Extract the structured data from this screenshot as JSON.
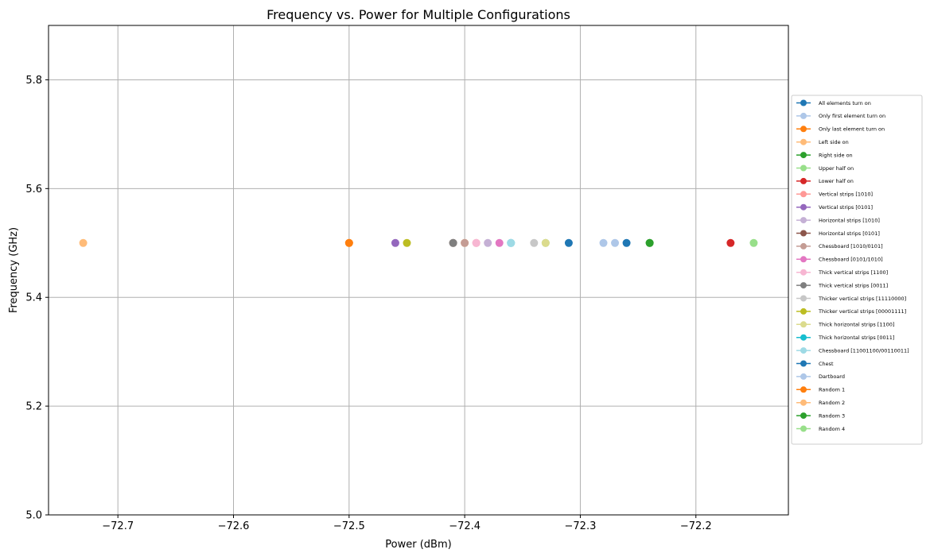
{
  "chart_data": {
    "type": "scatter",
    "title": "Frequency vs. Power for Multiple Configurations",
    "xlabel": "Power (dBm)",
    "ylabel": "Frequency (GHz)",
    "xlim": [
      -72.76,
      -72.12
    ],
    "ylim": [
      5.0,
      5.9
    ],
    "xticks": [
      -72.7,
      -72.6,
      -72.5,
      -72.4,
      -72.3,
      -72.2
    ],
    "xtick_labels": [
      "−72.7",
      "−72.6",
      "−72.5",
      "−72.4",
      "−72.3",
      "−72.2"
    ],
    "yticks": [
      5.0,
      5.2,
      5.4,
      5.6,
      5.8
    ],
    "ytick_labels": [
      "5.0",
      "5.2",
      "5.4",
      "5.6",
      "5.8"
    ],
    "grid": true,
    "legend_position": "center-right outside",
    "series": [
      {
        "name": "All elements turn on",
        "color": "#1f77b4",
        "x": -72.31,
        "y": 5.5
      },
      {
        "name": "Only first element turn on",
        "color": "#aec7e8",
        "x": -72.28,
        "y": 5.5
      },
      {
        "name": "Only last element turn on",
        "color": "#ff7f0e",
        "x": -72.5,
        "y": 5.5
      },
      {
        "name": "Left side on",
        "color": "#ffbb78",
        "x": -72.4,
        "y": 5.5
      },
      {
        "name": "Right side on",
        "color": "#2ca02c",
        "x": -72.24,
        "y": 5.5
      },
      {
        "name": "Upper half on",
        "color": "#98df8a",
        "x": -72.33,
        "y": 5.5
      },
      {
        "name": "Lower half on",
        "color": "#d62728",
        "x": -72.17,
        "y": 5.5
      },
      {
        "name": "Vertical strips [1010]",
        "color": "#ff9896",
        "x": -72.39,
        "y": 5.5
      },
      {
        "name": "Vertical strips [0101]",
        "color": "#9467bd",
        "x": -72.46,
        "y": 5.5
      },
      {
        "name": "Horizontal strips [1010]",
        "color": "#c5b0d5",
        "x": -72.38,
        "y": 5.5
      },
      {
        "name": "Horizontal strips [0101]",
        "color": "#8c564b",
        "x": -72.41,
        "y": 5.5
      },
      {
        "name": "Chessboard [1010/0101]",
        "color": "#c49c94",
        "x": -72.4,
        "y": 5.5
      },
      {
        "name": "Chessboard [0101/1010]",
        "color": "#e377c2",
        "x": -72.37,
        "y": 5.5
      },
      {
        "name": "Thick vertical strips [1100]",
        "color": "#f7b6d2",
        "x": -72.39,
        "y": 5.5
      },
      {
        "name": "Thick vertical strips [0011]",
        "color": "#7f7f7f",
        "x": -72.41,
        "y": 5.5
      },
      {
        "name": "Thicker vertical strips [11110000]",
        "color": "#c7c7c7",
        "x": -72.34,
        "y": 5.5
      },
      {
        "name": "Thicker vertical strips [00001111]",
        "color": "#bcbd22",
        "x": -72.45,
        "y": 5.5
      },
      {
        "name": "Thick horizontal strips [1100]",
        "color": "#dbdb8d",
        "x": -72.33,
        "y": 5.5
      },
      {
        "name": "Thick horizontal strips [0011]",
        "color": "#17becf",
        "x": -72.36,
        "y": 5.5
      },
      {
        "name": "Chessboard [11001100/00110011]",
        "color": "#9edae5",
        "x": -72.36,
        "y": 5.5
      },
      {
        "name": "Chest",
        "color": "#1f77b4",
        "x": -72.26,
        "y": 5.5
      },
      {
        "name": "Dartboard",
        "color": "#aec7e8",
        "x": -72.27,
        "y": 5.5
      },
      {
        "name": "Random 1",
        "color": "#ff7f0e",
        "x": -72.5,
        "y": 5.5
      },
      {
        "name": "Random 2",
        "color": "#ffbb78",
        "x": -72.73,
        "y": 5.5
      },
      {
        "name": "Random 3",
        "color": "#2ca02c",
        "x": -72.24,
        "y": 5.5
      },
      {
        "name": "Random 4",
        "color": "#98df8a",
        "x": -72.15,
        "y": 5.5
      }
    ]
  }
}
